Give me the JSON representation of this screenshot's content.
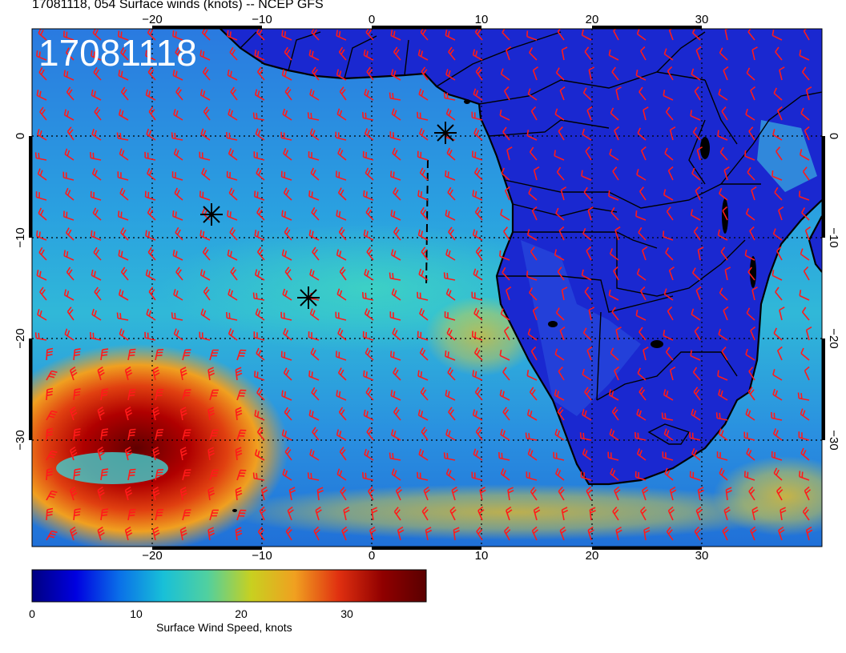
{
  "header": {
    "title": "17081118, 054 Surface winds (knots) -- NCEP GFS"
  },
  "map": {
    "stamp": "17081118",
    "lon_ticks_top": [
      "−20",
      "−10",
      "0",
      "10",
      "20",
      "30"
    ],
    "lon_ticks_bottom": [
      "−20",
      "−10",
      "0",
      "10",
      "20",
      "30"
    ],
    "lat_ticks_left": [
      "0",
      "−10",
      "−20",
      "−30"
    ],
    "lat_ticks_right": [
      "0",
      "−10",
      "−20",
      "−30"
    ],
    "barb_color": "#ff1a1a",
    "coast_color": "#000000",
    "graticule": "dotted"
  },
  "colorbar": {
    "label": "Surface Wind Speed, knots",
    "ticks": [
      "0",
      "10",
      "20",
      "30"
    ],
    "stops": [
      "#000080",
      "#0000e0",
      "#0a70e8",
      "#18c0d8",
      "#50d0a0",
      "#c8d020",
      "#f0a020",
      "#e03010",
      "#900000",
      "#5a0000"
    ]
  }
}
